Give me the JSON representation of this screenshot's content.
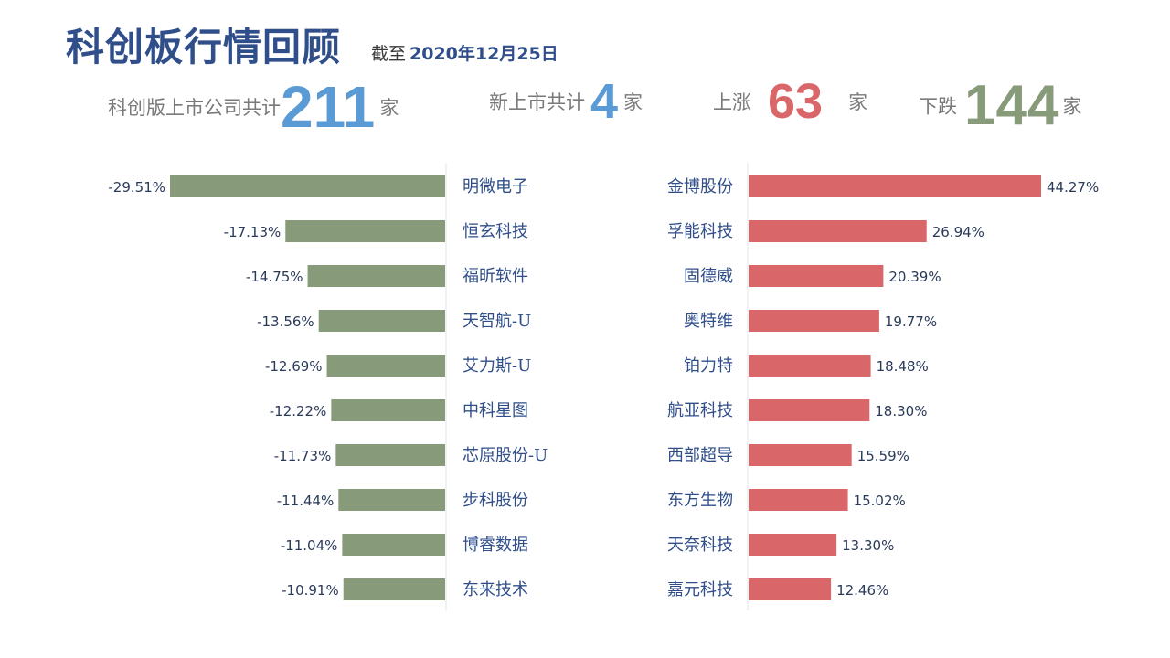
{
  "header": {
    "title": "科创板行情回顾",
    "asof_label": "截至",
    "asof_date": "2020年12月25日"
  },
  "stats": {
    "total_label": "科创版上市公司共计",
    "total_value": "211",
    "new_label": "新上市共计",
    "new_value": "4",
    "up_label": "上涨",
    "up_value": "63",
    "down_label": "下跌",
    "down_value": "144",
    "unit": "家"
  },
  "colors": {
    "decline_bar": "#879a7a",
    "gain_bar": "#d9676a",
    "label_text": "#2f4e8a",
    "up_number": "#d9676a",
    "down_number": "#879a7a",
    "count_number": "#5b9bd5"
  },
  "chart_data": [
    {
      "type": "bar",
      "orientation": "horizontal",
      "direction": "decline",
      "categories": [
        "明微电子",
        "恒玄科技",
        "福昕软件",
        "天智航-U",
        "艾力斯-U",
        "中科星图",
        "芯原股份-U",
        "步科股份",
        "博睿数据",
        "东来技术"
      ],
      "values": [
        -29.51,
        -17.13,
        -14.75,
        -13.56,
        -12.69,
        -12.22,
        -11.73,
        -11.44,
        -11.04,
        -10.91
      ],
      "value_labels": [
        "-29.51%",
        "-17.13%",
        "-14.75%",
        "-13.56%",
        "-12.69%",
        "-12.22%",
        "-11.73%",
        "-11.44%",
        "-11.04%",
        "-10.91%"
      ],
      "unit": "%",
      "xlim": [
        -29.51,
        0
      ]
    },
    {
      "type": "bar",
      "orientation": "horizontal",
      "direction": "gain",
      "categories": [
        "金博股份",
        "孚能科技",
        "固德威",
        "奥特维",
        "铂力特",
        "航亚科技",
        "西部超导",
        "东方生物",
        "天奈科技",
        "嘉元科技"
      ],
      "values": [
        44.27,
        26.94,
        20.39,
        19.77,
        18.48,
        18.3,
        15.59,
        15.02,
        13.3,
        12.46
      ],
      "value_labels": [
        "44.27%",
        "26.94%",
        "20.39%",
        "19.77%",
        "18.48%",
        "18.30%",
        "15.59%",
        "15.02%",
        "13.30%",
        "12.46%"
      ],
      "unit": "%",
      "xlim": [
        0,
        44.27
      ]
    }
  ]
}
